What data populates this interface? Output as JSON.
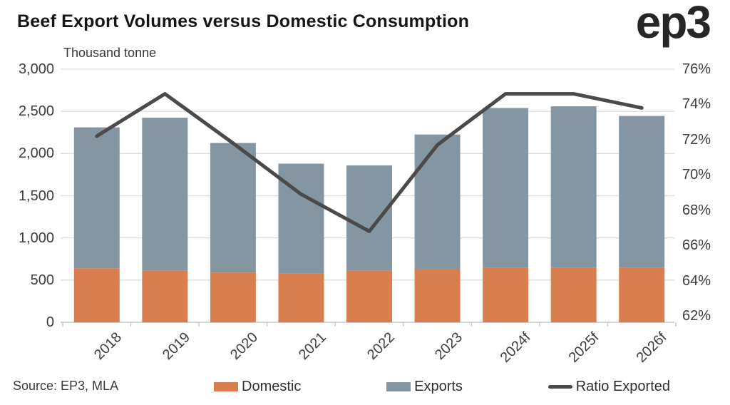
{
  "header": {
    "title": "Beef Export Volumes versus Domestic Consumption",
    "logo": "ep3"
  },
  "chart_data": {
    "type": "bar",
    "subtype": "stacked-bars-with-secondary-axis-line",
    "unit_label": "Thousand tonne",
    "categories": [
      "2018",
      "2019",
      "2020",
      "2021",
      "2022",
      "2023",
      "2024f",
      "2025f",
      "2026f"
    ],
    "series": [
      {
        "name": "Domestic",
        "type": "bar",
        "color": "#D97E4E",
        "values": [
          640,
          610,
          590,
          580,
          610,
          630,
          645,
          645,
          645
        ]
      },
      {
        "name": "Exports",
        "type": "bar",
        "color": "#8596A3",
        "values": [
          1670,
          1815,
          1535,
          1300,
          1250,
          1595,
          1895,
          1915,
          1800
        ]
      },
      {
        "name": "Ratio Exported",
        "type": "line",
        "axis": "right",
        "color": "#4A4A4A",
        "values": [
          72.2,
          74.6,
          71.8,
          68.9,
          66.8,
          71.7,
          74.6,
          74.6,
          73.8
        ]
      }
    ],
    "left_axis": {
      "min": 0,
      "max": 3000,
      "step": 500,
      "tick_labels": [
        "3,000",
        "2,500",
        "2,000",
        "1,500",
        "1,000",
        "500",
        "0"
      ]
    },
    "right_axis": {
      "min": 62,
      "max": 76,
      "step": 2,
      "tick_labels": [
        "76%",
        "74%",
        "72%",
        "70%",
        "68%",
        "66%",
        "64%",
        "62%"
      ]
    },
    "grid": true,
    "legend_position": "bottom",
    "grid_color": "#dcdcdc",
    "axis_line_color": "#c6c6c6"
  },
  "footer": {
    "source": "Source: EP3, MLA"
  }
}
